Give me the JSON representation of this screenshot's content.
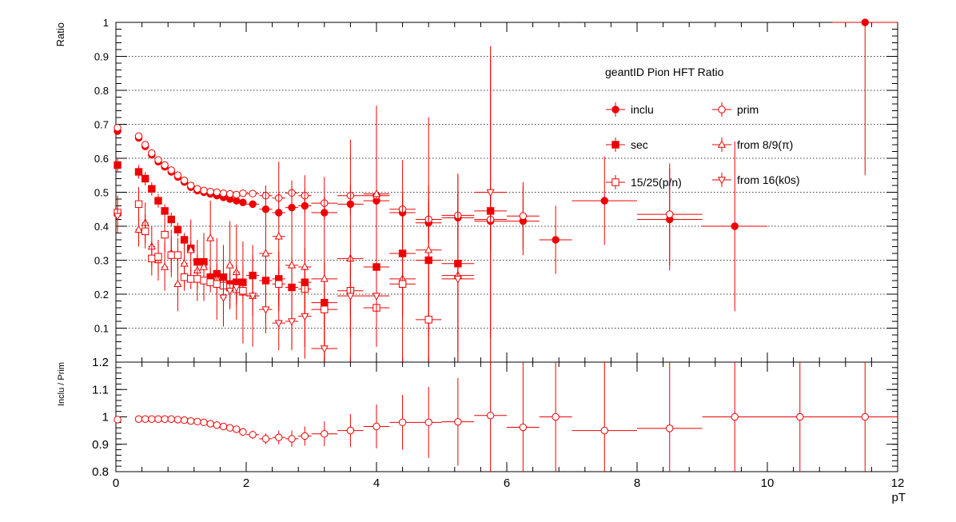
{
  "colors": {
    "marker": "#ee0000",
    "axis": "#000000",
    "grid": "#000000",
    "background": "#ffffff"
  },
  "chart_data": [
    {
      "type": "scatter",
      "title": "geantID Pion HFT Ratio",
      "xlabel": "",
      "ylabel": "Ratio",
      "xlim": [
        0,
        12
      ],
      "ylim": [
        0,
        1
      ],
      "grid": "horizontal dotted",
      "legend_placement": "top-right",
      "x_ticks": [
        "0",
        "2",
        "4",
        "6",
        "8",
        "10",
        "12"
      ],
      "y_ticks": [
        "0.1",
        "0.2",
        "0.3",
        "0.4",
        "0.5",
        "0.6",
        "0.7",
        "0.8",
        "0.9",
        "1"
      ],
      "series": [
        {
          "name": "inclu",
          "marker": "filled-circle",
          "x": [
            0.025,
            0.35,
            0.45,
            0.55,
            0.65,
            0.75,
            0.85,
            0.95,
            1.05,
            1.15,
            1.25,
            1.35,
            1.45,
            1.55,
            1.65,
            1.75,
            1.85,
            1.95,
            2.1,
            2.3,
            2.5,
            2.7,
            2.9,
            3.2,
            3.6,
            4.0,
            4.4,
            4.8,
            5.25,
            5.75,
            6.25,
            6.75,
            7.5,
            8.5,
            9.5,
            11.5
          ],
          "y": [
            0.68,
            0.66,
            0.635,
            0.61,
            0.59,
            0.575,
            0.56,
            0.545,
            0.53,
            0.515,
            0.505,
            0.5,
            0.495,
            0.49,
            0.485,
            0.48,
            0.475,
            0.47,
            0.465,
            0.45,
            0.44,
            0.455,
            0.46,
            0.44,
            0.465,
            0.475,
            0.44,
            0.41,
            0.425,
            0.415,
            0.415,
            0.36,
            0.475,
            0.42,
            0.4,
            1.0
          ],
          "xerr": [
            0.025,
            0.05,
            0.05,
            0.05,
            0.05,
            0.05,
            0.05,
            0.05,
            0.05,
            0.05,
            0.05,
            0.05,
            0.05,
            0.05,
            0.05,
            0.05,
            0.05,
            0.05,
            0.1,
            0.1,
            0.1,
            0.1,
            0.1,
            0.2,
            0.2,
            0.2,
            0.2,
            0.2,
            0.25,
            0.25,
            0.25,
            0.25,
            0.5,
            0.5,
            0.5,
            0.5
          ],
          "yerr": [
            0.01,
            0.01,
            0.01,
            0.01,
            0.01,
            0.01,
            0.01,
            0.01,
            0.01,
            0.01,
            0.01,
            0.01,
            0.01,
            0.01,
            0.01,
            0.01,
            0.01,
            0.01,
            0.01,
            0.01,
            0.015,
            0.02,
            0.02,
            0.02,
            0.03,
            0.04,
            0.05,
            0.06,
            0.07,
            0.09,
            0.1,
            0.1,
            0.13,
            0.15,
            0.25,
            0.45
          ]
        },
        {
          "name": "prim",
          "marker": "open-circle",
          "x": [
            0.025,
            0.35,
            0.45,
            0.55,
            0.65,
            0.75,
            0.85,
            0.95,
            1.05,
            1.15,
            1.25,
            1.35,
            1.45,
            1.55,
            1.65,
            1.75,
            1.85,
            1.95,
            2.1,
            2.3,
            2.5,
            2.7,
            2.9,
            3.2,
            3.6,
            4.0,
            4.4,
            4.8,
            5.25,
            5.75,
            6.25,
            8.5
          ],
          "y": [
            0.69,
            0.665,
            0.64,
            0.615,
            0.595,
            0.58,
            0.565,
            0.55,
            0.535,
            0.52,
            0.51,
            0.505,
            0.502,
            0.5,
            0.497,
            0.495,
            0.493,
            0.497,
            0.496,
            0.49,
            0.483,
            0.498,
            0.49,
            0.468,
            0.49,
            0.49,
            0.45,
            0.42,
            0.432,
            0.42,
            0.43,
            0.435
          ],
          "xerr": [
            0.025,
            0.05,
            0.05,
            0.05,
            0.05,
            0.05,
            0.05,
            0.05,
            0.05,
            0.05,
            0.05,
            0.05,
            0.05,
            0.05,
            0.05,
            0.05,
            0.05,
            0.05,
            0.1,
            0.1,
            0.1,
            0.1,
            0.1,
            0.2,
            0.2,
            0.2,
            0.2,
            0.2,
            0.25,
            0.25,
            0.25,
            0.5
          ],
          "yerr": [
            0.01,
            0.01,
            0.01,
            0.01,
            0.01,
            0.01,
            0.01,
            0.01,
            0.01,
            0.01,
            0.01,
            0.01,
            0.01,
            0.01,
            0.01,
            0.01,
            0.01,
            0.01,
            0.01,
            0.01,
            0.015,
            0.02,
            0.02,
            0.02,
            0.03,
            0.04,
            0.05,
            0.06,
            0.07,
            0.09,
            0.1,
            0.15
          ]
        },
        {
          "name": "sec",
          "marker": "filled-square",
          "x": [
            0.025,
            0.35,
            0.45,
            0.55,
            0.65,
            0.75,
            0.85,
            0.95,
            1.05,
            1.15,
            1.25,
            1.35,
            1.45,
            1.55,
            1.65,
            1.75,
            1.85,
            1.95,
            2.1,
            2.3,
            2.5,
            2.7,
            2.9,
            3.2,
            4.0,
            4.4,
            4.8,
            5.25,
            5.75
          ],
          "y": [
            0.58,
            0.56,
            0.54,
            0.51,
            0.475,
            0.445,
            0.42,
            0.39,
            0.36,
            0.335,
            0.295,
            0.295,
            0.25,
            0.26,
            0.25,
            0.23,
            0.235,
            0.235,
            0.255,
            0.24,
            0.245,
            0.22,
            0.235,
            0.175,
            0.28,
            0.32,
            0.3,
            0.29,
            0.445
          ],
          "xerr": [
            0.025,
            0.05,
            0.05,
            0.05,
            0.05,
            0.05,
            0.05,
            0.05,
            0.05,
            0.05,
            0.05,
            0.05,
            0.05,
            0.05,
            0.05,
            0.05,
            0.05,
            0.05,
            0.1,
            0.1,
            0.1,
            0.1,
            0.1,
            0.2,
            0.2,
            0.2,
            0.2,
            0.25,
            0.25
          ],
          "yerr": [
            0.02,
            0.02,
            0.02,
            0.02,
            0.02,
            0.02,
            0.02,
            0.02,
            0.02,
            0.02,
            0.02,
            0.03,
            0.03,
            0.03,
            0.04,
            0.04,
            0.05,
            0.05,
            0.06,
            0.07,
            0.08,
            0.09,
            0.1,
            0.12,
            0.15,
            0.18,
            0.22,
            0.26,
            0.45
          ]
        },
        {
          "name": "from 8/9(π)",
          "marker": "open-triangle-up",
          "x": [
            0.025,
            0.35,
            0.45,
            0.55,
            0.65,
            0.75,
            0.85,
            0.95,
            1.05,
            1.15,
            1.25,
            1.35,
            1.45,
            1.55,
            1.65,
            1.75,
            1.85,
            1.95,
            2.1,
            2.3,
            2.5,
            2.7,
            2.9,
            3.2,
            3.6,
            4.0,
            4.4,
            4.8,
            5.25
          ],
          "y": [
            0.44,
            0.39,
            0.41,
            0.34,
            0.3,
            0.28,
            0.32,
            0.23,
            0.29,
            0.33,
            0.27,
            0.28,
            0.365,
            0.245,
            0.225,
            0.285,
            0.265,
            0.205,
            0.195,
            0.32,
            0.37,
            0.285,
            0.28,
            0.245,
            0.305,
            0.495,
            0.245,
            0.33,
            0.255
          ],
          "xerr": [
            0.025,
            0.05,
            0.05,
            0.05,
            0.05,
            0.05,
            0.05,
            0.05,
            0.05,
            0.05,
            0.05,
            0.05,
            0.05,
            0.05,
            0.05,
            0.05,
            0.05,
            0.05,
            0.1,
            0.1,
            0.1,
            0.1,
            0.1,
            0.2,
            0.2,
            0.2,
            0.2,
            0.2,
            0.25
          ],
          "yerr": [
            0.05,
            0.05,
            0.06,
            0.06,
            0.06,
            0.07,
            0.07,
            0.08,
            0.08,
            0.09,
            0.09,
            0.1,
            0.11,
            0.12,
            0.12,
            0.13,
            0.14,
            0.15,
            0.15,
            0.2,
            0.22,
            0.25,
            0.27,
            0.3,
            0.35,
            0.26,
            0.35,
            0.39,
            0.3
          ]
        },
        {
          "name": "15/25(p/n)",
          "marker": "open-square",
          "x": [
            0.025,
            0.35,
            0.45,
            0.55,
            0.65,
            0.75,
            0.85,
            0.95,
            1.05,
            1.15,
            1.25,
            1.35,
            1.45,
            1.55,
            1.65,
            1.75,
            1.85,
            1.95,
            2.5,
            2.9,
            3.2,
            3.6,
            4.0,
            4.4,
            4.8
          ],
          "y": [
            0.44,
            0.465,
            0.385,
            0.305,
            0.31,
            0.375,
            0.315,
            0.315,
            0.25,
            0.245,
            0.245,
            0.24,
            0.235,
            0.23,
            0.225,
            0.22,
            0.215,
            0.21,
            0.23,
            0.215,
            0.155,
            0.21,
            0.16,
            0.23,
            0.125
          ],
          "xerr": [
            0.025,
            0.05,
            0.05,
            0.05,
            0.05,
            0.05,
            0.05,
            0.05,
            0.05,
            0.05,
            0.05,
            0.05,
            0.05,
            0.05,
            0.05,
            0.05,
            0.05,
            0.05,
            0.1,
            0.1,
            0.2,
            0.2,
            0.2,
            0.2,
            0.2
          ],
          "yerr": [
            0.05,
            0.05,
            0.05,
            0.05,
            0.05,
            0.05,
            0.05,
            0.05,
            0.03,
            0.03,
            0.03,
            0.03,
            0.03,
            0.03,
            0.03,
            0.03,
            0.03,
            0.03,
            0.05,
            0.06,
            0.06,
            0.07,
            0.08,
            0.1,
            0.15
          ]
        },
        {
          "name": "from 16(k0s)",
          "marker": "open-triangle-down",
          "x": [
            0.025,
            1.65,
            1.75,
            1.85,
            2.1,
            2.3,
            2.5,
            2.7,
            2.9,
            3.2,
            3.6,
            4.0,
            5.25,
            5.75
          ],
          "y": [
            0.43,
            0.19,
            0.21,
            0.22,
            0.195,
            0.155,
            0.115,
            0.12,
            0.135,
            0.04,
            0.195,
            0.195,
            0.245,
            0.5
          ],
          "xerr": [
            0.025,
            0.05,
            0.05,
            0.05,
            0.1,
            0.1,
            0.1,
            0.1,
            0.1,
            0.2,
            0.2,
            0.2,
            0.25,
            0.25
          ],
          "yerr": [
            0.05,
            0.05,
            0.05,
            0.05,
            0.06,
            0.07,
            0.08,
            0.08,
            0.09,
            0.1,
            0.12,
            0.15,
            0.25,
            0.43
          ]
        }
      ]
    },
    {
      "type": "scatter",
      "title": "",
      "xlabel": "pT",
      "ylabel": "Inclu / Prim",
      "xlim": [
        0,
        12
      ],
      "ylim": [
        0.8,
        1.2
      ],
      "grid": "none",
      "x_ticks": [
        "0",
        "2",
        "4",
        "6",
        "8",
        "10",
        "12"
      ],
      "y_ticks": [
        "0.8",
        "0.9",
        "1",
        "1.1",
        "1.2"
      ],
      "series": [
        {
          "marker": "open-circle",
          "x": [
            0.025,
            0.35,
            0.45,
            0.55,
            0.65,
            0.75,
            0.85,
            0.95,
            1.05,
            1.15,
            1.25,
            1.35,
            1.45,
            1.55,
            1.65,
            1.75,
            1.85,
            1.95,
            2.1,
            2.3,
            2.5,
            2.7,
            2.9,
            3.2,
            3.6,
            4.0,
            4.4,
            4.8,
            5.25,
            5.75,
            6.25,
            6.75,
            7.5,
            8.5,
            9.5,
            10.5,
            11.5
          ],
          "y": [
            0.99,
            0.992,
            0.992,
            0.992,
            0.992,
            0.992,
            0.992,
            0.99,
            0.988,
            0.985,
            0.983,
            0.98,
            0.975,
            0.97,
            0.965,
            0.96,
            0.955,
            0.945,
            0.935,
            0.92,
            0.925,
            0.92,
            0.93,
            0.938,
            0.95,
            0.965,
            0.98,
            0.98,
            0.982,
            1.005,
            0.962,
            1.0,
            0.95,
            0.958,
            1.0,
            1.0,
            1.0
          ],
          "xerr": [
            0.025,
            0.05,
            0.05,
            0.05,
            0.05,
            0.05,
            0.05,
            0.05,
            0.05,
            0.05,
            0.05,
            0.05,
            0.05,
            0.05,
            0.05,
            0.05,
            0.05,
            0.05,
            0.1,
            0.1,
            0.1,
            0.1,
            0.1,
            0.2,
            0.2,
            0.2,
            0.2,
            0.2,
            0.25,
            0.25,
            0.25,
            0.25,
            0.5,
            0.5,
            0.5,
            0.5,
            0.5
          ],
          "yerr": [
            0.005,
            0.004,
            0.004,
            0.004,
            0.004,
            0.004,
            0.004,
            0.004,
            0.004,
            0.004,
            0.004,
            0.005,
            0.006,
            0.007,
            0.008,
            0.01,
            0.012,
            0.015,
            0.015,
            0.02,
            0.025,
            0.03,
            0.035,
            0.045,
            0.06,
            0.08,
            0.1,
            0.13,
            0.16,
            0.22,
            0.3,
            0.3,
            0.3,
            0.3,
            0.3,
            0.3,
            0.3
          ]
        }
      ]
    }
  ]
}
